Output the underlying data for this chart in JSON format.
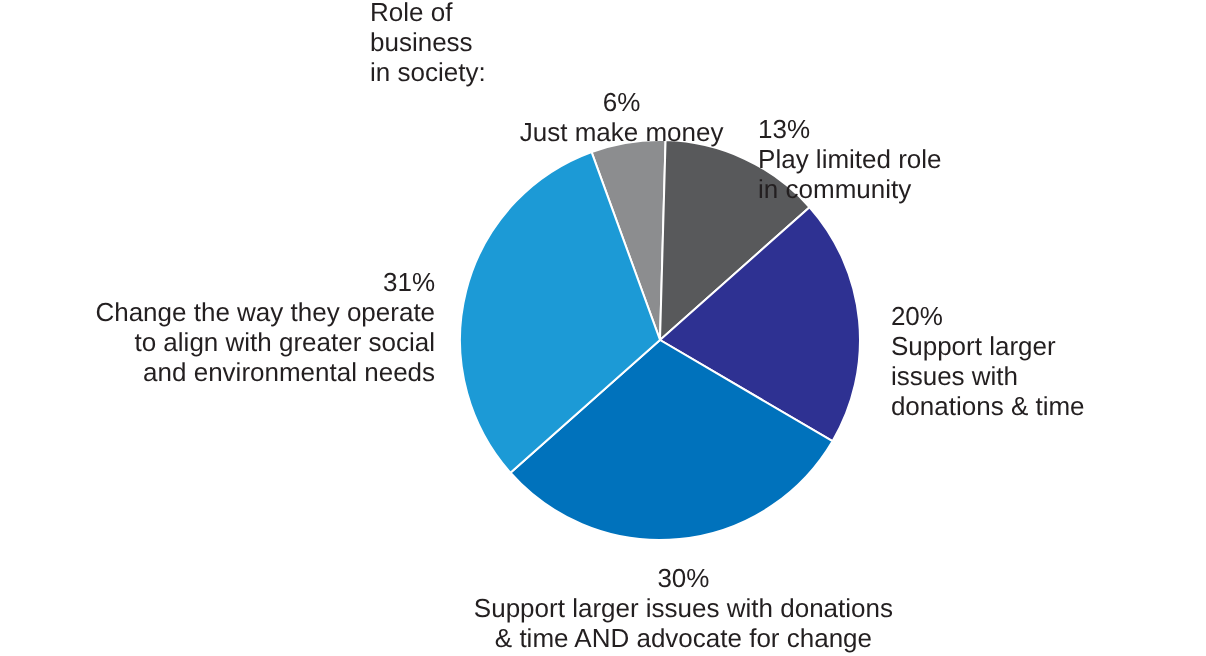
{
  "chart_data": {
    "type": "pie",
    "title": "Role of\nbusiness\nin society:",
    "categories": [
      "Just make money",
      "Play limited role\nin community",
      "Support larger\nissues with\ndonations & time",
      "Support larger issues with donations\n& time AND advocate for change",
      "Change the way they operate\nto align with greater social\nand environmental needs"
    ],
    "values": [
      6,
      13,
      20,
      30,
      31
    ],
    "value_labels": [
      "6%",
      "13%",
      "20%",
      "30%",
      "31%"
    ],
    "colors": [
      "#8c8d8f",
      "#58595b",
      "#2e3192",
      "#0072bc",
      "#1c9ad6"
    ],
    "legend": false
  }
}
